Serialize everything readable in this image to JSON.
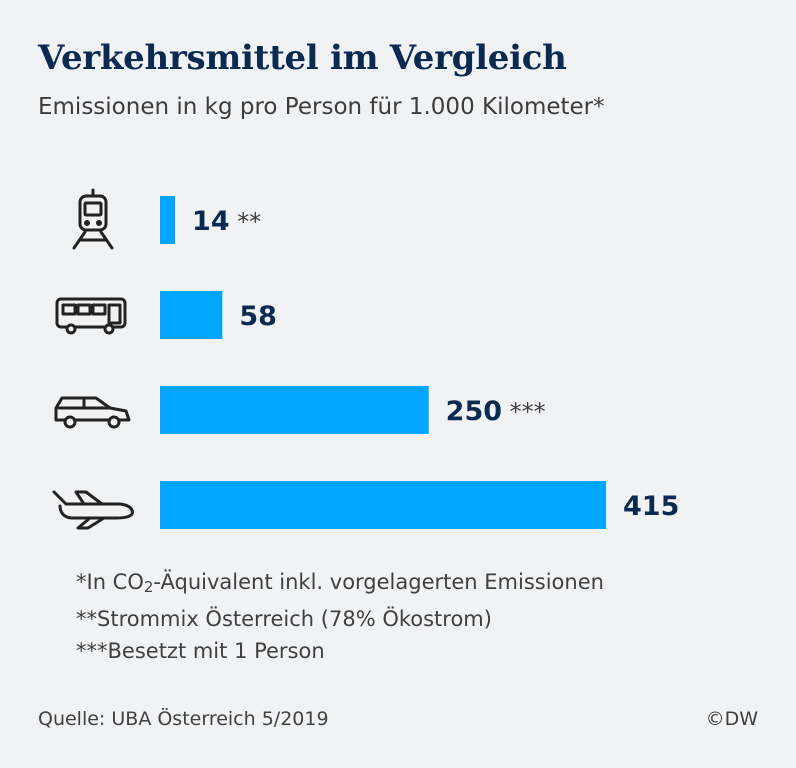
{
  "chart_data": {
    "type": "bar",
    "orientation": "horizontal",
    "title": "Verkehrsmittel im Vergleich",
    "subtitle": "Emissionen in kg pro Person für 1.000 Kilometer*",
    "categories": [
      "train-icon",
      "bus-icon",
      "car-icon",
      "airplane-icon"
    ],
    "values": [
      14,
      58,
      250,
      415
    ],
    "value_labels": [
      "14",
      "58",
      "250",
      "415"
    ],
    "annotations": [
      "**",
      "",
      "***",
      ""
    ],
    "bar_color": "#00a5ff",
    "label_color": "#0b2a52",
    "grid": false
  },
  "footnotes": {
    "line1_pre": "*In CO",
    "line1_sub": "2",
    "line1_post": "-Äquivalent inkl. vorgelagerten Emissionen",
    "line2": "**Strommix Österreich (78% Ökostrom)",
    "line3": "***Besetzt mit 1 Person"
  },
  "source": "Quelle: UBA Österreich 5/2019",
  "copyright": "©DW"
}
